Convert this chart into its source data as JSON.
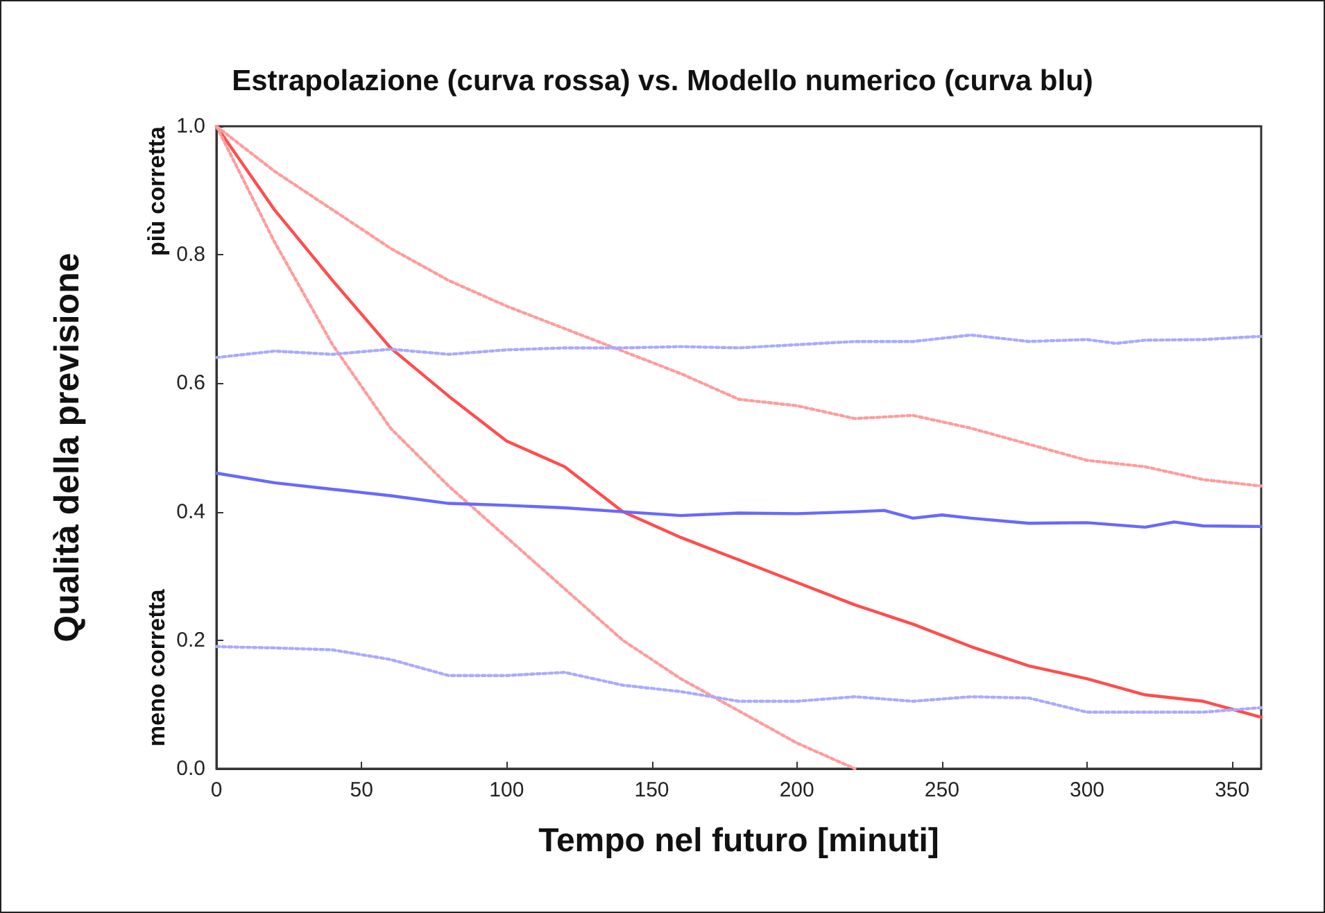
{
  "chart_data": {
    "type": "line",
    "title": "Estrapolazione (curva rossa) vs. Modello numerico (curva blu)",
    "xlabel": "Tempo nel futuro [minuti]",
    "ylabel": "Qualità della previsione",
    "annotations": [
      "più corretta",
      "meno corretta"
    ],
    "xlim": [
      0,
      360
    ],
    "xticks": [
      0,
      50,
      100,
      150,
      200,
      250,
      300,
      350
    ],
    "ylim": [
      0,
      1
    ],
    "yticks": [
      {
        "value": 0,
        "label": "0.0"
      },
      0.2,
      0.4,
      0.6,
      0.8,
      {
        "value": 1,
        "label": "1.0"
      }
    ],
    "grid": false,
    "marker": "none",
    "series": [
      {
        "color": "#ff4d4d",
        "line_style": "solid",
        "x": [
          0,
          20,
          40,
          60,
          80,
          100,
          120,
          140,
          160,
          180,
          200,
          220,
          240,
          260,
          280,
          300,
          320,
          340,
          360
        ],
        "values": [
          1.0,
          0.87,
          0.76,
          0.655,
          0.58,
          0.51,
          0.47,
          0.4,
          0.36,
          0.325,
          0.29,
          0.255,
          0.225,
          0.19,
          0.16,
          0.14,
          0.115,
          0.105,
          0.08
        ]
      },
      {
        "color": "#ff9c9c",
        "line_style": "dotted",
        "x": [
          0,
          20,
          40,
          60,
          80,
          100,
          120,
          140,
          160,
          180,
          200,
          220,
          240,
          260,
          280,
          300,
          320,
          340,
          360
        ],
        "values": [
          1.0,
          0.93,
          0.87,
          0.81,
          0.76,
          0.72,
          0.685,
          0.65,
          0.615,
          0.575,
          0.565,
          0.545,
          0.55,
          0.53,
          0.505,
          0.48,
          0.47,
          0.45,
          0.44
        ]
      },
      {
        "color": "#ff9c9c",
        "line_style": "dotted",
        "x": [
          0,
          20,
          40,
          60,
          80,
          100,
          120,
          140,
          160,
          180,
          200,
          220
        ],
        "values": [
          1.0,
          0.82,
          0.66,
          0.53,
          0.44,
          0.36,
          0.28,
          0.2,
          0.14,
          0.09,
          0.04,
          0.0
        ]
      },
      {
        "color": "#6868ff",
        "line_style": "solid",
        "x": [
          0,
          20,
          40,
          60,
          80,
          100,
          120,
          140,
          160,
          180,
          200,
          220,
          230,
          240,
          250,
          260,
          280,
          300,
          320,
          330,
          340,
          360
        ],
        "values": [
          0.46,
          0.445,
          0.435,
          0.425,
          0.413,
          0.41,
          0.406,
          0.4,
          0.394,
          0.398,
          0.397,
          0.4,
          0.402,
          0.39,
          0.395,
          0.39,
          0.382,
          0.383,
          0.376,
          0.384,
          0.378,
          0.377
        ]
      },
      {
        "color": "#aaaaff",
        "line_style": "dotted",
        "x": [
          0,
          20,
          40,
          60,
          80,
          100,
          120,
          140,
          160,
          180,
          200,
          220,
          240,
          260,
          280,
          300,
          310,
          320,
          340,
          360
        ],
        "values": [
          0.64,
          0.65,
          0.645,
          0.653,
          0.645,
          0.652,
          0.655,
          0.655,
          0.657,
          0.655,
          0.66,
          0.665,
          0.665,
          0.675,
          0.665,
          0.668,
          0.662,
          0.667,
          0.668,
          0.673
        ]
      },
      {
        "color": "#aaaaff",
        "line_style": "dotted",
        "x": [
          0,
          20,
          40,
          60,
          80,
          100,
          120,
          140,
          160,
          180,
          200,
          220,
          240,
          260,
          280,
          300,
          320,
          340,
          360
        ],
        "values": [
          0.19,
          0.188,
          0.185,
          0.17,
          0.145,
          0.145,
          0.15,
          0.13,
          0.12,
          0.105,
          0.105,
          0.112,
          0.105,
          0.112,
          0.11,
          0.088,
          0.088,
          0.088,
          0.095
        ]
      }
    ]
  }
}
